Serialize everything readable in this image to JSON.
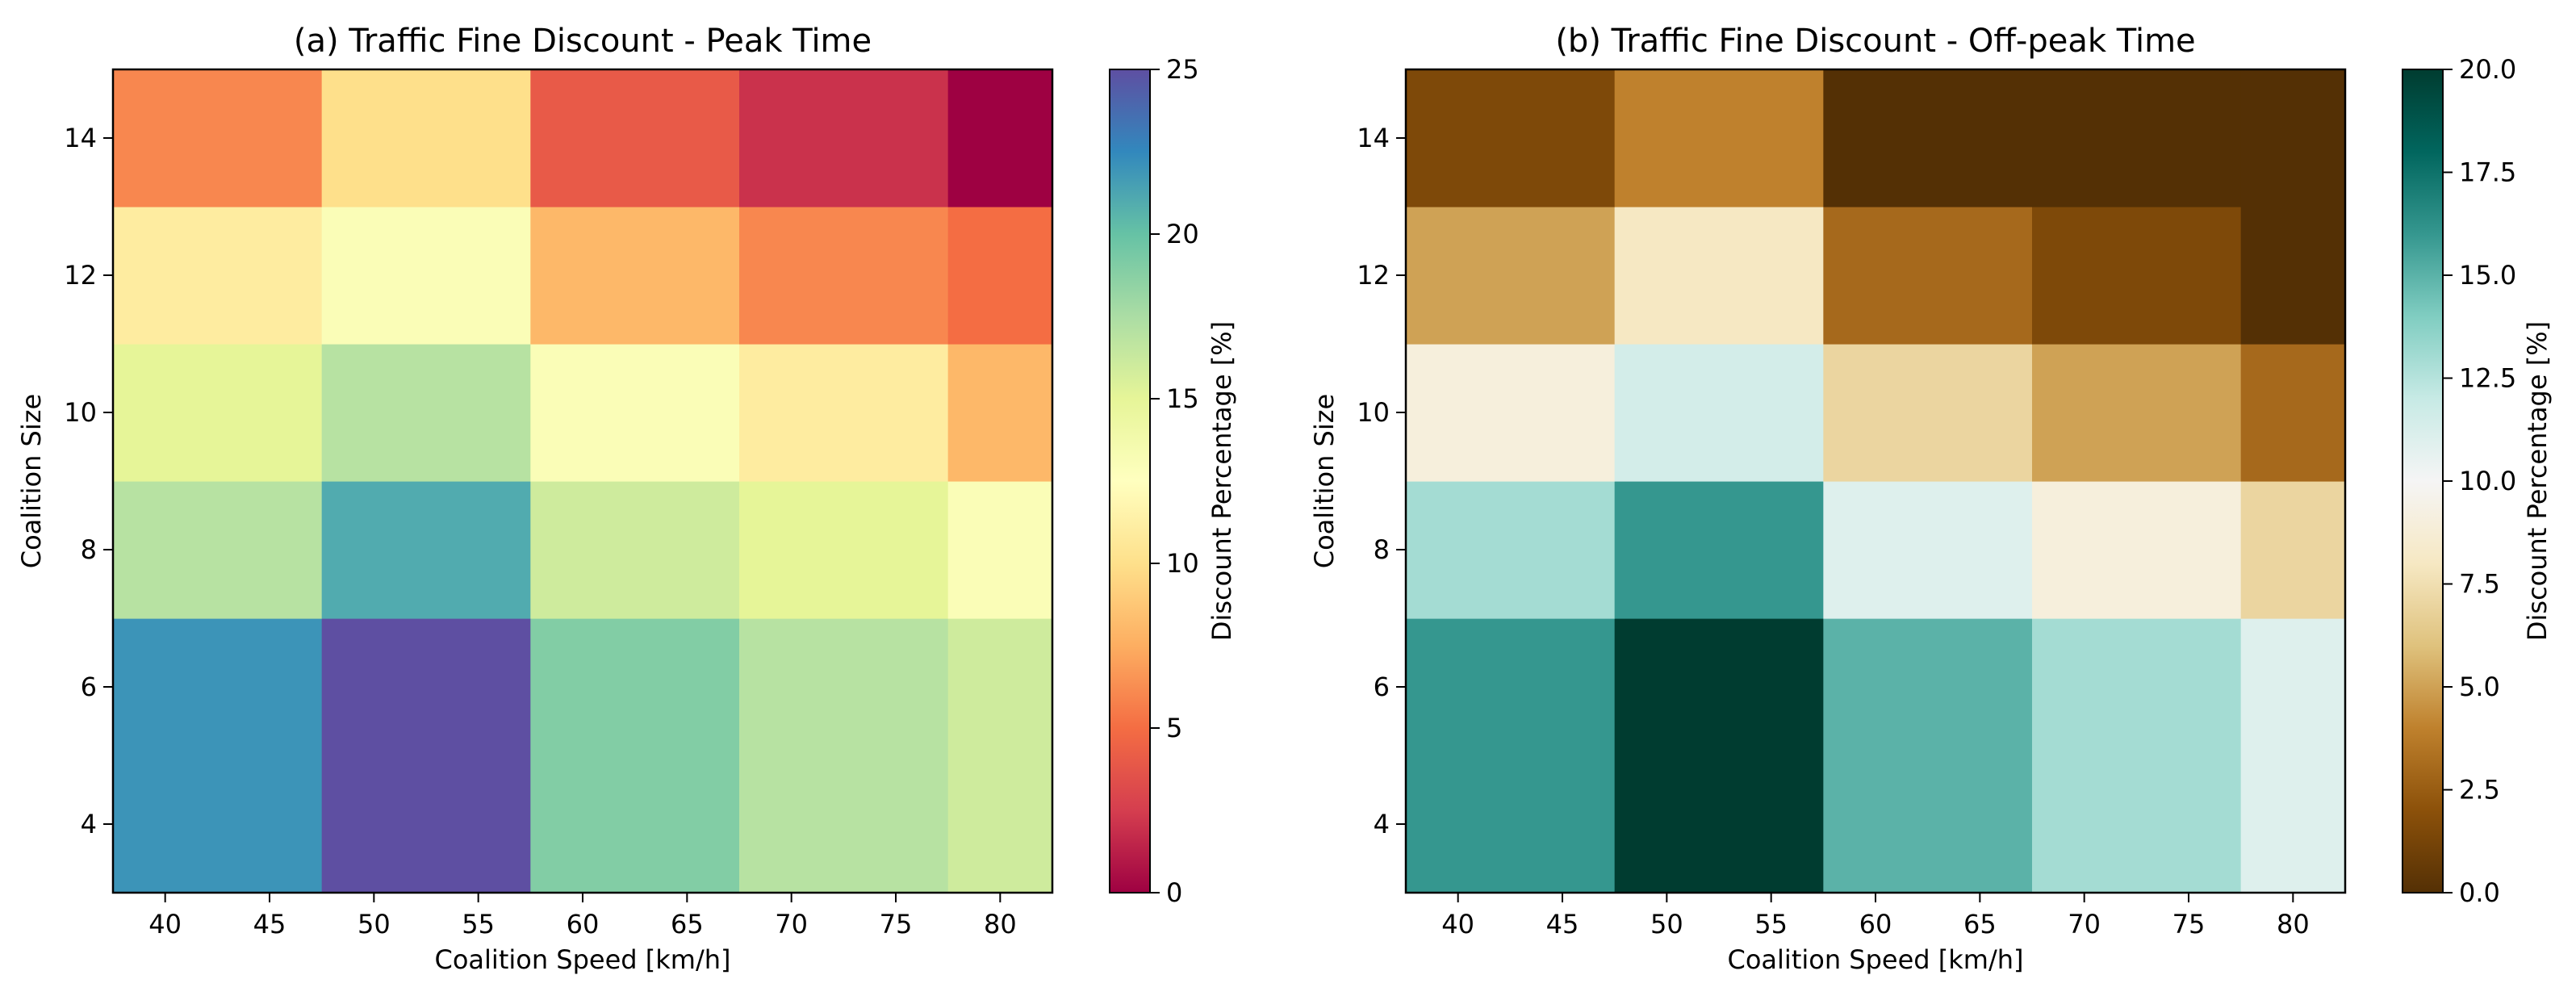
{
  "chart_data": [
    {
      "type": "heatmap",
      "title": "(a) Traffic Fine Discount - Peak Time",
      "xlabel": "Coalition Speed [km/h]",
      "ylabel": "Coalition Size",
      "x_ticks": [
        "40",
        "45",
        "50",
        "55",
        "60",
        "65",
        "70",
        "75",
        "80"
      ],
      "y_ticks": [
        "4",
        "6",
        "8",
        "10",
        "12",
        "14"
      ],
      "xlim": [
        37.5,
        82.5
      ],
      "ylim": [
        3,
        15
      ],
      "x_cells": [
        [
          37.5,
          47.5
        ],
        [
          47.5,
          57.5
        ],
        [
          57.5,
          67.5
        ],
        [
          67.5,
          77.5
        ],
        [
          77.5,
          82.5
        ]
      ],
      "y_cells": [
        [
          3,
          7
        ],
        [
          7,
          9
        ],
        [
          9,
          11
        ],
        [
          11,
          13
        ],
        [
          13,
          15
        ]
      ],
      "values": [
        [
          22,
          25,
          19,
          17,
          16
        ],
        [
          17,
          21,
          16,
          15,
          13
        ],
        [
          15,
          17,
          13,
          11,
          8
        ],
        [
          11,
          13,
          8,
          6,
          5
        ],
        [
          6,
          10,
          4,
          2,
          0
        ]
      ],
      "colorbar": {
        "label": "Discount Percentage [%]",
        "range": [
          0,
          25
        ],
        "ticks": [
          "0",
          "5",
          "10",
          "15",
          "20",
          "25"
        ],
        "colormap": "Spectral",
        "stops": [
          "#9e0142",
          "#d53e4f",
          "#f46d43",
          "#fdae61",
          "#fee08b",
          "#ffffbf",
          "#e6f598",
          "#abdda4",
          "#66c2a5",
          "#3288bd",
          "#5e4fa2"
        ]
      }
    },
    {
      "type": "heatmap",
      "title": "(b) Traffic Fine Discount - Off-peak Time",
      "xlabel": "Coalition Speed [km/h]",
      "ylabel": "Coalition Size",
      "x_ticks": [
        "40",
        "45",
        "50",
        "55",
        "60",
        "65",
        "70",
        "75",
        "80"
      ],
      "y_ticks": [
        "4",
        "6",
        "8",
        "10",
        "12",
        "14"
      ],
      "xlim": [
        37.5,
        82.5
      ],
      "ylim": [
        3,
        15
      ],
      "x_cells": [
        [
          37.5,
          47.5
        ],
        [
          47.5,
          57.5
        ],
        [
          57.5,
          67.5
        ],
        [
          67.5,
          77.5
        ],
        [
          77.5,
          82.5
        ]
      ],
      "y_cells": [
        [
          3,
          7
        ],
        [
          7,
          9
        ],
        [
          9,
          11
        ],
        [
          11,
          13
        ],
        [
          13,
          15
        ]
      ],
      "values": [
        [
          16,
          20,
          15,
          13,
          11
        ],
        [
          13,
          16,
          11,
          9,
          7
        ],
        [
          9,
          11.5,
          7,
          5,
          3
        ],
        [
          5,
          8,
          3,
          1.5,
          0
        ],
        [
          1.5,
          4,
          0,
          0,
          0
        ]
      ],
      "colorbar": {
        "label": "Discount Percentage [%]",
        "range": [
          0,
          20
        ],
        "ticks": [
          "0.0",
          "2.5",
          "5.0",
          "7.5",
          "10.0",
          "12.5",
          "15.0",
          "17.5",
          "20.0"
        ],
        "colormap": "BrBG",
        "stops": [
          "#543005",
          "#8c510a",
          "#bf812d",
          "#dfc27d",
          "#f6e8c3",
          "#f5f5f5",
          "#c7eae5",
          "#80cdc1",
          "#35978f",
          "#01665e",
          "#003c30"
        ]
      }
    }
  ]
}
